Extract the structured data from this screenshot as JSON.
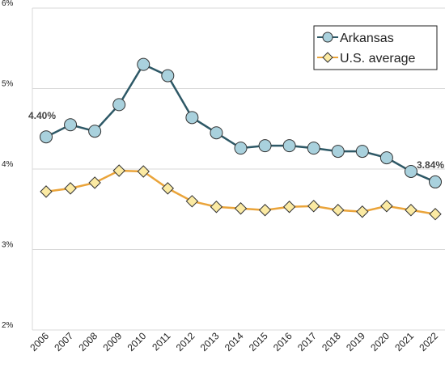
{
  "chart_data": {
    "type": "line",
    "categories": [
      "2006",
      "2007",
      "2008",
      "2009",
      "2010",
      "2011",
      "2012",
      "2013",
      "2014",
      "2015",
      "2016",
      "2017",
      "2018",
      "2019",
      "2020",
      "2021",
      "2022"
    ],
    "series": [
      {
        "name": "Arkansas",
        "color": "#2d5866",
        "marker_fill": "#a9d1dd",
        "marker": "circle",
        "values": [
          4.4,
          4.55,
          4.47,
          4.8,
          5.3,
          5.16,
          4.64,
          4.45,
          4.26,
          4.29,
          4.29,
          4.26,
          4.22,
          4.22,
          4.14,
          3.97,
          3.84
        ],
        "value_labels": [
          "4.40%",
          null,
          null,
          null,
          null,
          null,
          null,
          null,
          null,
          null,
          null,
          null,
          null,
          null,
          null,
          null,
          "3.84%"
        ]
      },
      {
        "name": "U.S. average",
        "color": "#eaa43a",
        "marker_fill": "#fbeaa3",
        "marker": "diamond",
        "values": [
          3.72,
          3.76,
          3.83,
          3.98,
          3.97,
          3.76,
          3.6,
          3.53,
          3.51,
          3.49,
          3.53,
          3.54,
          3.49,
          3.47,
          3.54,
          3.49,
          3.44
        ]
      }
    ],
    "ylim": [
      2,
      6
    ],
    "yticks": [
      {
        "value": 2,
        "label": "2%"
      },
      {
        "value": 3,
        "label": "3%"
      },
      {
        "value": 4,
        "label": "4%"
      },
      {
        "value": 5,
        "label": "5%"
      },
      {
        "value": 6,
        "label": "6%"
      }
    ],
    "grid": true,
    "legend": "upper right"
  }
}
